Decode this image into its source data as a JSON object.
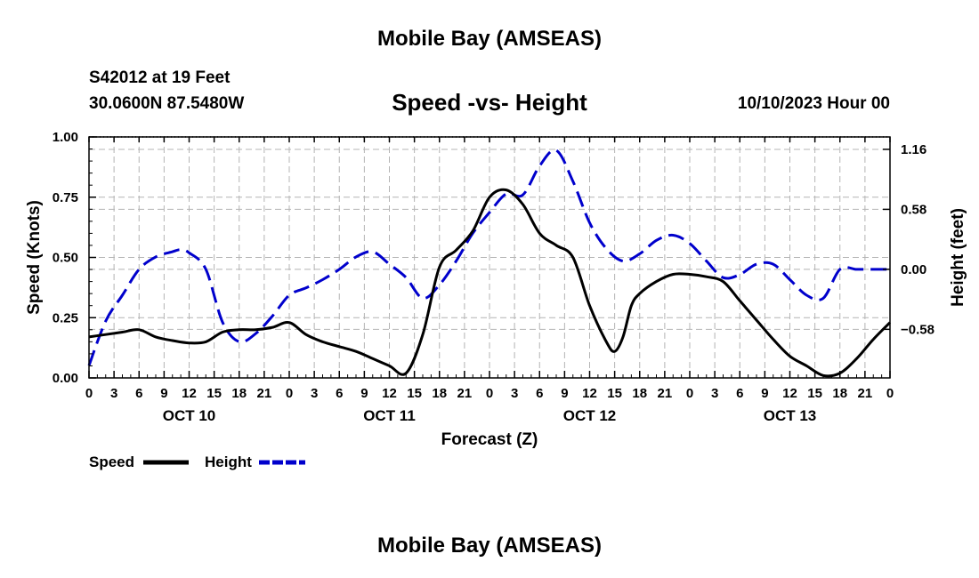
{
  "page": {
    "title_top": "Mobile Bay (AMSEAS)",
    "title_bottom": "Mobile Bay (AMSEAS)",
    "station": "S42012 at 19 Feet",
    "coords": "30.0600N  87.5480W",
    "chart_title": "Speed -vs- Height",
    "datetime": "10/10/2023 Hour 00"
  },
  "chart_data": {
    "type": "line",
    "title": "Speed -vs- Height",
    "xlabel": "Forecast (Z)",
    "ylabel": "Speed (Knots)",
    "y2label": "Height (feet)",
    "xlim": [
      0,
      96
    ],
    "ylim": [
      0,
      1.0
    ],
    "y2lim": [
      -1.05,
      1.28
    ],
    "x_ticks": [
      0,
      3,
      6,
      9,
      12,
      15,
      18,
      21,
      24,
      27,
      30,
      33,
      36,
      39,
      42,
      45,
      48,
      51,
      54,
      57,
      60,
      63,
      66,
      69,
      72,
      75,
      78,
      81,
      84,
      87,
      90,
      93,
      96
    ],
    "x_tick_labels": [
      "0",
      "3",
      "6",
      "9",
      "12",
      "15",
      "18",
      "21",
      "0",
      "3",
      "6",
      "9",
      "12",
      "15",
      "18",
      "21",
      "0",
      "3",
      "6",
      "9",
      "12",
      "15",
      "18",
      "21",
      "0",
      "3",
      "6",
      "9",
      "12",
      "15",
      "18",
      "21",
      "0"
    ],
    "day_labels": [
      {
        "x": 12,
        "label": "OCT 10"
      },
      {
        "x": 36,
        "label": "OCT 11"
      },
      {
        "x": 60,
        "label": "OCT 12"
      },
      {
        "x": 84,
        "label": "OCT 13"
      }
    ],
    "y_ticks": [
      0,
      0.25,
      0.5,
      0.75,
      1.0
    ],
    "y_tick_labels": [
      "0.00",
      "0.25",
      "0.50",
      "0.75",
      "1.00"
    ],
    "y2_ticks": [
      -0.58,
      0.0,
      0.58,
      1.16
    ],
    "y2_tick_labels": [
      "−0.58",
      "0.00",
      "0.58",
      "1.16"
    ],
    "grid": true,
    "legend": [
      {
        "name": "Speed",
        "color": "#000000",
        "dash": "solid"
      },
      {
        "name": "Height",
        "color": "#0000cc",
        "dash": "dashed"
      }
    ],
    "series": [
      {
        "name": "Speed",
        "axis": "left",
        "color": "#000000",
        "x": [
          0,
          2,
          4,
          6,
          8,
          10,
          12,
          14,
          16,
          18,
          20,
          22,
          24,
          26,
          28,
          30,
          32,
          34,
          36,
          38,
          40,
          42,
          44,
          46,
          48,
          50,
          52,
          54,
          56,
          58,
          60,
          62,
          63,
          64,
          65,
          66,
          68,
          70,
          72,
          74,
          76,
          78,
          80,
          82,
          84,
          86,
          88,
          90,
          92,
          94,
          96
        ],
        "y": [
          0.17,
          0.18,
          0.19,
          0.2,
          0.17,
          0.155,
          0.145,
          0.15,
          0.19,
          0.2,
          0.2,
          0.21,
          0.23,
          0.18,
          0.15,
          0.13,
          0.11,
          0.08,
          0.05,
          0.02,
          0.18,
          0.46,
          0.53,
          0.61,
          0.75,
          0.78,
          0.72,
          0.6,
          0.55,
          0.5,
          0.3,
          0.15,
          0.11,
          0.17,
          0.3,
          0.35,
          0.4,
          0.43,
          0.43,
          0.42,
          0.4,
          0.32,
          0.24,
          0.16,
          0.09,
          0.05,
          0.01,
          0.02,
          0.08,
          0.16,
          0.23
        ]
      },
      {
        "name": "Height",
        "axis": "right",
        "color": "#0000cc",
        "x": [
          0,
          2,
          4,
          6,
          8,
          10,
          11,
          12,
          14,
          16,
          18,
          20,
          22,
          24,
          26,
          28,
          30,
          32,
          34,
          36,
          38,
          40,
          42,
          44,
          46,
          48,
          50,
          52,
          54,
          56,
          58,
          60,
          62,
          64,
          66,
          68,
          70,
          72,
          74,
          76,
          78,
          80,
          82,
          84,
          86,
          88,
          90,
          92,
          94,
          96
        ],
        "y": [
          -0.93,
          -0.5,
          -0.25,
          0.0,
          0.12,
          0.17,
          0.19,
          0.16,
          0.0,
          -0.51,
          -0.7,
          -0.62,
          -0.45,
          -0.25,
          -0.18,
          -0.1,
          0.0,
          0.12,
          0.17,
          0.05,
          -0.08,
          -0.28,
          -0.15,
          0.08,
          0.35,
          0.55,
          0.73,
          0.72,
          1.0,
          1.15,
          0.85,
          0.45,
          0.2,
          0.08,
          0.15,
          0.28,
          0.33,
          0.25,
          0.08,
          -0.08,
          -0.05,
          0.05,
          0.05,
          -0.1,
          -0.25,
          -0.28,
          0.0,
          0.0,
          0.0,
          0.0
        ]
      }
    ]
  }
}
